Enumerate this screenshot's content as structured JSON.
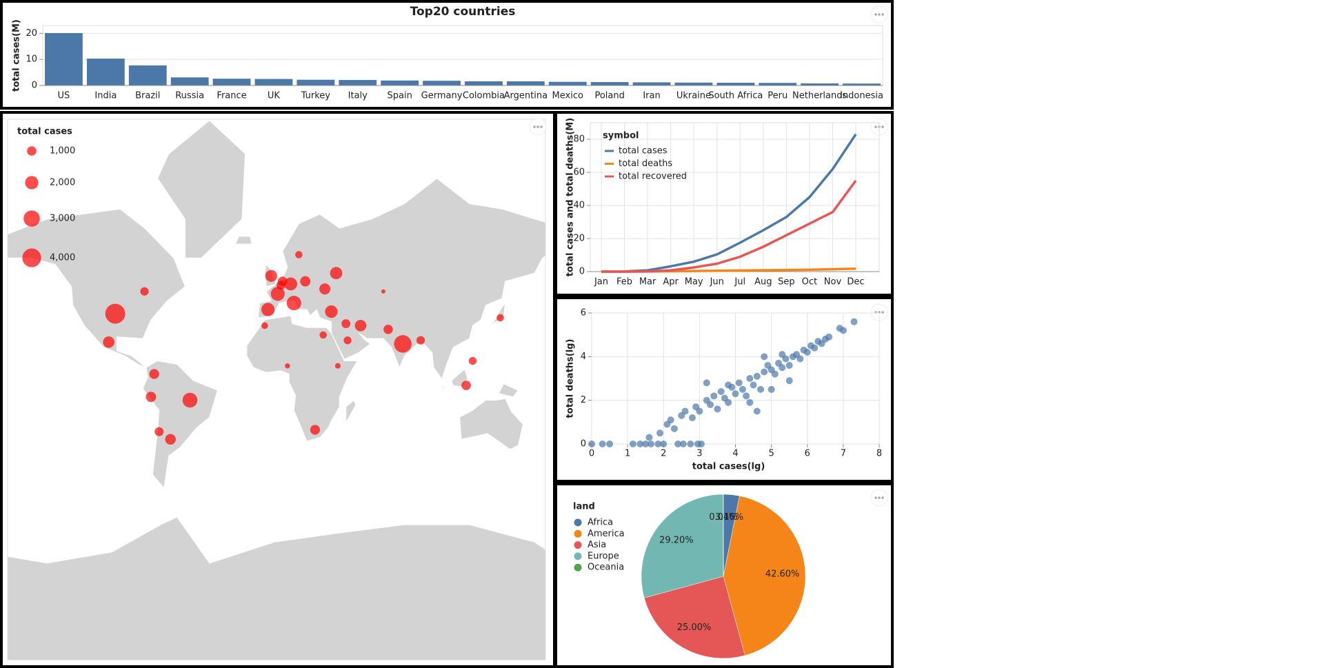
{
  "chart_data": [
    {
      "type": "bar",
      "title": "Top20 countries",
      "y_label": "total cases(M)",
      "categories": [
        "US",
        "India",
        "Brazil",
        "Russia",
        "France",
        "UK",
        "Turkey",
        "Italy",
        "Spain",
        "Germany",
        "Colombia",
        "Argentina",
        "Mexico",
        "Poland",
        "Iran",
        "Ukraine",
        "South Africa",
        "Peru",
        "Netherlands",
        "Indonesia"
      ],
      "values": [
        20.1,
        10.3,
        7.7,
        3.1,
        2.6,
        2.5,
        2.2,
        2.1,
        1.9,
        1.8,
        1.6,
        1.6,
        1.4,
        1.3,
        1.2,
        1.1,
        1.06,
        1.0,
        0.8,
        0.74
      ],
      "color": "#4c78a8",
      "ylim": [
        0,
        23
      ],
      "yticks": [
        0,
        10,
        20
      ],
      "grid": true
    },
    {
      "type": "bubble_map",
      "legend_title": "total cases",
      "color": "#ff0000",
      "land_color": "#d3d3d3",
      "size_legend": [
        {
          "value": 1000,
          "label": "1,000"
        },
        {
          "value": 2000,
          "label": "2,000"
        },
        {
          "value": 3000,
          "label": "3,000"
        },
        {
          "value": 4000,
          "label": "4,000"
        }
      ],
      "points": {
        "lon": [
          -98,
          -52,
          79,
          -102,
          -74,
          -76,
          -64,
          -71,
          -80,
          -2,
          2,
          -4,
          12,
          10,
          19,
          38,
          35,
          53,
          44,
          45,
          25,
          30,
          118,
          122,
          70,
          90,
          139,
          8,
          39,
          -6,
          31,
          5,
          4,
          15,
          67
        ],
        "lat": [
          38,
          -12,
          22,
          23,
          4,
          -10,
          -34,
          -30,
          48,
          54,
          47,
          40,
          43,
          51,
          52,
          55,
          39,
          32,
          33,
          24,
          -29,
          27,
          -3,
          12,
          30,
          24,
          36,
          9,
          9,
          32,
          49,
          52,
          50.5,
          61,
          48
        ],
        "size": [
          4500,
          2500,
          3500,
          1500,
          1100,
          1200,
          1300,
          900,
          800,
          1600,
          2200,
          2000,
          2400,
          1900,
          1200,
          1700,
          1800,
          1500,
          900,
          700,
          1100,
          600,
          1000,
          700,
          1000,
          800,
          600,
          300,
          350,
          500,
          1400,
          1000,
          900,
          600,
          200
        ]
      }
    },
    {
      "type": "line",
      "y_label": "total cases and total deaths(M)",
      "legend_title": "symbol",
      "categories": [
        "Jan",
        "Feb",
        "Mar",
        "Apr",
        "May",
        "Jun",
        "Jul",
        "Aug",
        "Sep",
        "Oct",
        "Nov",
        "Dec"
      ],
      "series": [
        {
          "name": "total cases",
          "color": "#4c78a8",
          "values": [
            0,
            0.1,
            0.8,
            3.2,
            6,
            10.4,
            17.5,
            25,
            33,
            45,
            62,
            83
          ]
        },
        {
          "name": "total deaths",
          "color": "#f58518",
          "values": [
            0,
            0,
            0.04,
            0.2,
            0.37,
            0.5,
            0.68,
            0.85,
            1.0,
            1.15,
            1.45,
            1.8
          ]
        },
        {
          "name": "total recovered",
          "color": "#e45756",
          "values": [
            0,
            0,
            0.1,
            0.8,
            2.5,
            4.8,
            9,
            15,
            22,
            29,
            36,
            55
          ]
        }
      ],
      "ylim": [
        0,
        90
      ],
      "yticks": [
        0,
        20,
        40,
        60,
        80
      ],
      "grid": true
    },
    {
      "type": "scatter",
      "x_label": "total cases(lg)",
      "y_label": "total deaths(lg)",
      "color": "#4c78a8",
      "x": [
        0,
        0.3,
        0.5,
        1.15,
        1.35,
        1.5,
        1.65,
        1.85,
        2.0,
        2.4,
        2.55,
        2.75,
        2.95,
        3.05,
        1.6,
        1.9,
        2.1,
        2.2,
        2.3,
        2.5,
        2.6,
        2.8,
        2.9,
        3.0,
        3.2,
        3.3,
        3.4,
        3.5,
        3.6,
        3.7,
        3.8,
        3.9,
        4.0,
        4.1,
        4.2,
        4.3,
        4.4,
        4.5,
        4.6,
        4.7,
        4.8,
        4.9,
        5.0,
        5.1,
        5.2,
        5.3,
        5.4,
        5.5,
        5.6,
        5.7,
        5.8,
        5.9,
        6.0,
        6.1,
        6.2,
        6.3,
        6.4,
        6.5,
        6.6,
        6.9,
        7.0,
        7.3,
        4.6,
        5.0,
        3.2,
        4.4,
        5.5,
        3.8,
        4.8,
        5.3
      ],
      "values": [
        0,
        0,
        0,
        0,
        0,
        0,
        0,
        0,
        0,
        0,
        0,
        0,
        0,
        0,
        0.3,
        0.5,
        0.9,
        1.1,
        0.7,
        1.3,
        1.5,
        1.2,
        1.7,
        1.5,
        2.0,
        1.8,
        2.2,
        1.6,
        2.4,
        2.1,
        1.9,
        2.6,
        2.3,
        2.8,
        2.5,
        2.2,
        3.0,
        2.7,
        3.1,
        2.5,
        3.3,
        3.6,
        3.4,
        3.2,
        3.7,
        3.5,
        3.9,
        3.6,
        4.0,
        4.1,
        3.9,
        4.3,
        4.2,
        4.5,
        4.4,
        4.7,
        4.6,
        4.8,
        4.9,
        5.3,
        5.2,
        5.6,
        1.5,
        2.5,
        2.8,
        1.9,
        2.9,
        2.7,
        4.0,
        4.1
      ],
      "xlim": [
        0,
        8
      ],
      "ylim": [
        0,
        6
      ],
      "xticks": [
        0,
        1,
        2,
        3,
        4,
        5,
        6,
        7,
        8
      ],
      "yticks": [
        0,
        2,
        4,
        6
      ],
      "grid": true
    },
    {
      "type": "pie",
      "legend_title": "land",
      "categories": [
        "Africa",
        "America",
        "Asia",
        "Europe",
        "Oceania"
      ],
      "values": [
        3.16,
        42.6,
        25.0,
        29.2,
        0.04
      ],
      "value_labels": [
        "3.16%",
        "42.60%",
        "25.00%",
        "29.20%",
        "0.04%"
      ],
      "colors": [
        "#4c78a8",
        "#f58518",
        "#e45756",
        "#72b7b2",
        "#54a24b"
      ]
    }
  ]
}
